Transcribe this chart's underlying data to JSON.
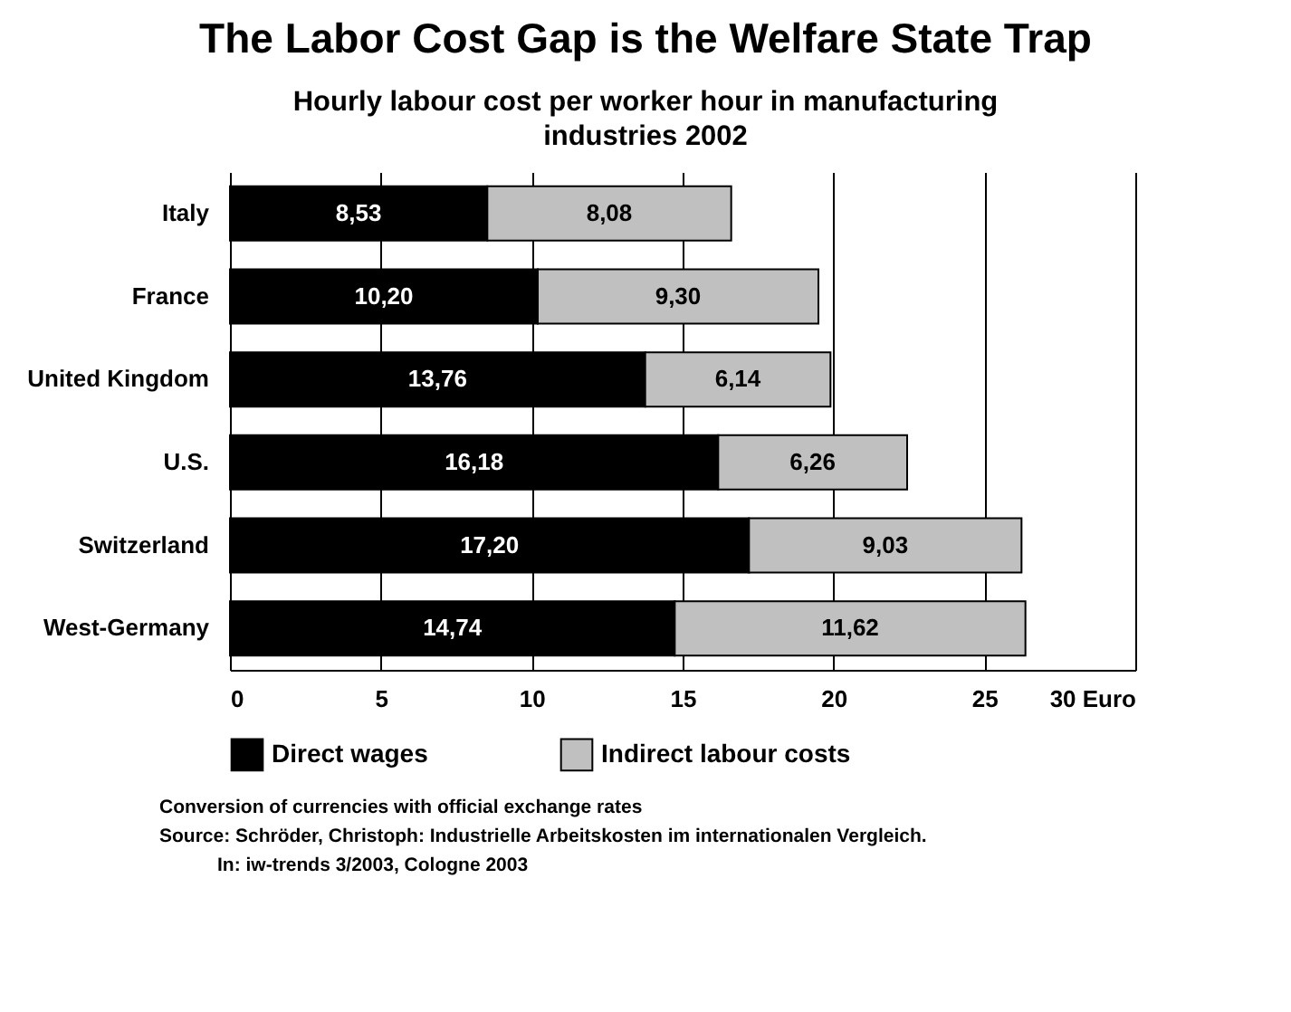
{
  "chart_data": {
    "type": "bar",
    "orientation": "horizontal",
    "stacked": true,
    "title": "The Labor Cost Gap is the Welfare State Trap",
    "subtitle": "Hourly labour cost per worker hour in manufacturing industries 2002",
    "categories": [
      "Italy",
      "France",
      "United Kingdom",
      "U.S.",
      "Switzerland",
      "West-Germany"
    ],
    "series": [
      {
        "name": "Direct wages",
        "color": "#000000",
        "values": [
          8.53,
          10.2,
          13.76,
          16.18,
          17.2,
          14.74
        ],
        "value_labels": [
          "8,53",
          "10,20",
          "13,76",
          "16,18",
          "17,20",
          "14,74"
        ]
      },
      {
        "name": "Indirect labour costs",
        "color": "#c0c0c0",
        "values": [
          8.08,
          9.3,
          6.14,
          6.26,
          9.03,
          11.62
        ],
        "value_labels": [
          "8,08",
          "9,30",
          "6,14",
          "6,26",
          "9,03",
          "11,62"
        ]
      }
    ],
    "xlim": [
      0,
      30
    ],
    "xticks": [
      0,
      5,
      10,
      15,
      20,
      25,
      {
        "value": 30,
        "label": "30 Euro"
      }
    ],
    "grid": "x",
    "legend": "bottom",
    "annotations": [
      "Conversion of currencies with official exchange rates",
      "Source: Schröder, Christoph: Industrielle Arbeitskosten im internationalen Vergleich.",
      "In: iw-trends 3/2003, Cologne 2003"
    ]
  }
}
